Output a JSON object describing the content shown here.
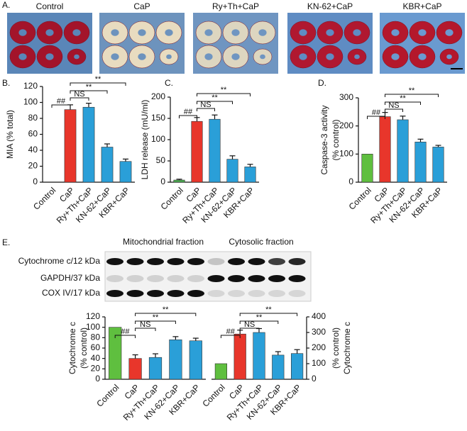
{
  "figure": {
    "panel_a": {
      "label": "A.",
      "photos": [
        "Control",
        "CaP",
        "Ry+Th+CaP",
        "KN-62+CaP",
        "KBR+CaP"
      ]
    },
    "panel_e": {
      "label": "E.",
      "fractions": [
        "Mitochondrial fraction",
        "Cytosolic fraction"
      ],
      "bands": [
        "Cytochrome c/12 kDa",
        "GAPDH/37 kDa",
        "COX IV/17 kDa"
      ]
    }
  },
  "chart_data": [
    {
      "type": "bar",
      "panel": "B.",
      "ylabel": [
        "MIA (% total)"
      ],
      "categories": [
        "Control",
        "CaP",
        "Ry+Th+CaP",
        "KN-62+CaP",
        "KBR+CaP"
      ],
      "values": [
        0,
        91,
        94,
        44,
        26
      ],
      "errors": [
        null,
        6,
        5,
        4,
        3
      ],
      "colors": [
        null,
        "#e8362b",
        "#2a9fd8",
        "#2a9fd8",
        "#2a9fd8"
      ],
      "ylim": [
        0,
        120
      ],
      "yticks": [
        0,
        20,
        40,
        60,
        80,
        100,
        120
      ],
      "yaxis": "left",
      "annotations": [
        "##",
        "NS",
        "**",
        "**"
      ]
    },
    {
      "type": "bar",
      "panel": "C.",
      "ylabel": [
        "LDH release (mU/ml)"
      ],
      "categories": [
        "Control",
        "CaP",
        "Ry+Th+CaP",
        "KN-62+CaP",
        "KBR+CaP"
      ],
      "values": [
        5,
        143,
        148,
        54,
        36
      ],
      "errors": [
        2,
        9,
        10,
        8,
        6
      ],
      "colors": [
        "#4caf50",
        "#e8362b",
        "#2a9fd8",
        "#2a9fd8",
        "#2a9fd8"
      ],
      "ylim": [
        0,
        200
      ],
      "yticks": [
        0,
        50,
        100,
        150,
        200
      ],
      "yaxis": "left",
      "annotations": [
        "##",
        "NS",
        "**",
        "**"
      ]
    },
    {
      "type": "bar",
      "panel": "D.",
      "ylabel": [
        "Caspase-3 activity",
        "(% control)"
      ],
      "categories": [
        "Control",
        "CaP",
        "Ry+Th+CaP",
        "KN-62+CaP",
        "KBR+CaP"
      ],
      "values": [
        100,
        233,
        222,
        143,
        125
      ],
      "errors": [
        null,
        15,
        13,
        10,
        6
      ],
      "colors": [
        "#5fbf3f",
        "#e8362b",
        "#2a9fd8",
        "#2a9fd8",
        "#2a9fd8"
      ],
      "ylim": [
        0,
        300
      ],
      "yticks": [
        0,
        100,
        200,
        300
      ],
      "yaxis": "left",
      "annotations": [
        "##",
        "NS",
        "**",
        "**"
      ]
    },
    {
      "type": "bar",
      "ylabel": [
        "Cytochrome c",
        "(% control)"
      ],
      "categories": [
        "Control",
        "CaP",
        "Ry+Th+CaP",
        "KN-62+CaP",
        "KBR+CaP"
      ],
      "values": [
        100,
        40,
        42,
        76,
        74
      ],
      "errors": [
        null,
        7,
        7,
        6,
        5
      ],
      "colors": [
        "#5fbf3f",
        "#e8362b",
        "#2a9fd8",
        "#2a9fd8",
        "#2a9fd8"
      ],
      "ylim": [
        0,
        120
      ],
      "yticks": [
        0,
        20,
        40,
        60,
        80,
        100,
        120
      ],
      "yaxis": "left",
      "annotations": [
        "##",
        "NS",
        "**",
        "**"
      ]
    },
    {
      "type": "bar",
      "ylabel": [
        "Cytochrome c",
        "(% control)"
      ],
      "categories": [
        "Control",
        "CaP",
        "Ry+Th+CaP",
        "KN-62+CaP",
        "KBR+CaP"
      ],
      "values": [
        100,
        290,
        300,
        155,
        165
      ],
      "errors": [
        null,
        25,
        25,
        22,
        25
      ],
      "colors": [
        "#5fbf3f",
        "#e8362b",
        "#2a9fd8",
        "#2a9fd8",
        "#2a9fd8"
      ],
      "ylim": [
        0,
        400
      ],
      "yticks": [
        0,
        100,
        200,
        300,
        400
      ],
      "yaxis": "right",
      "annotations": [
        "##",
        "NS",
        "**",
        "**"
      ]
    }
  ]
}
